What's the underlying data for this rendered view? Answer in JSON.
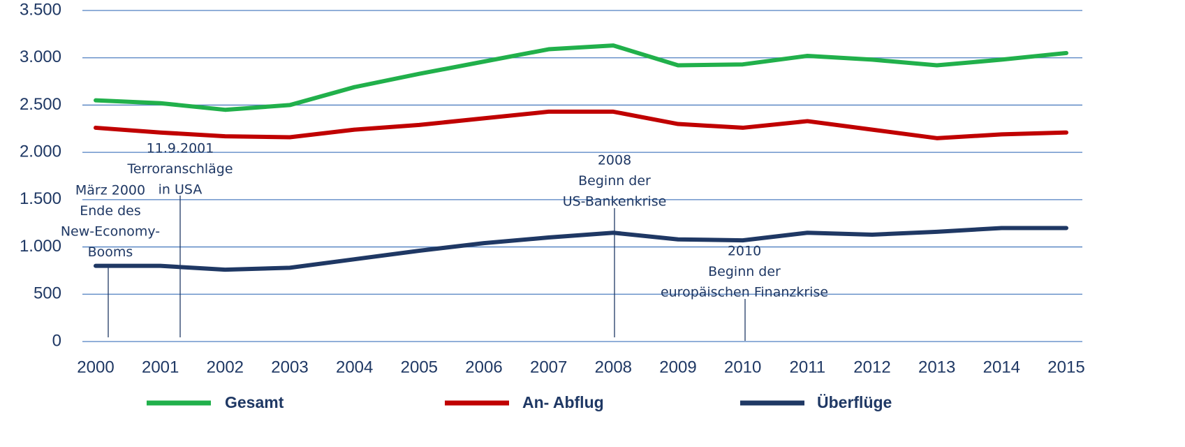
{
  "chart_data": {
    "type": "line",
    "x": [
      2000,
      2001,
      2002,
      2003,
      2004,
      2005,
      2006,
      2007,
      2008,
      2009,
      2010,
      2011,
      2012,
      2013,
      2014,
      2015
    ],
    "xlim": [
      2000,
      2015
    ],
    "xticks": [
      2000,
      2001,
      2002,
      2003,
      2004,
      2005,
      2006,
      2007,
      2008,
      2009,
      2010,
      2011,
      2012,
      2013,
      2014,
      2015
    ],
    "ylim": [
      0,
      3500
    ],
    "yticks": [
      0,
      500,
      {
        "value": 1000,
        "label": "1.000"
      },
      {
        "value": 1500,
        "label": "1.500"
      },
      {
        "value": 2000,
        "label": "2.000"
      },
      {
        "value": 2500,
        "label": "2.500"
      },
      {
        "value": 3000,
        "label": "3.000"
      },
      {
        "value": 3500,
        "label": "3.500"
      }
    ],
    "grid": true,
    "series": [
      {
        "name": "Gesamt",
        "color": "#21b04b",
        "values": [
          2550,
          2520,
          2450,
          2500,
          2690,
          2830,
          2960,
          3090,
          3130,
          2920,
          2930,
          3020,
          2980,
          2920,
          2980,
          3050
        ]
      },
      {
        "name": "An- Abflug",
        "color": "#c00000",
        "values": [
          2260,
          2210,
          2170,
          2160,
          2240,
          2290,
          2360,
          2430,
          2430,
          2300,
          2260,
          2330,
          2240,
          2150,
          2190,
          2210
        ]
      },
      {
        "name": "Überflüge",
        "color": "#1f3864",
        "values": [
          800,
          800,
          760,
          780,
          870,
          960,
          1040,
          1100,
          1150,
          1080,
          1070,
          1150,
          1130,
          1160,
          1200,
          1200
        ]
      }
    ],
    "annotations": [
      {
        "lines": [
          "März 2000",
          "Ende des",
          "New-Economy-",
          "Booms"
        ]
      },
      {
        "lines": [
          "11.9.2001",
          "Terroranschläge",
          "in USA"
        ]
      },
      {
        "lines": [
          "2008",
          "Beginn der",
          "US-Bankenkrise"
        ]
      },
      {
        "lines": [
          "2010",
          "Beginn der",
          "europäischen Finanzkrise"
        ]
      }
    ]
  }
}
